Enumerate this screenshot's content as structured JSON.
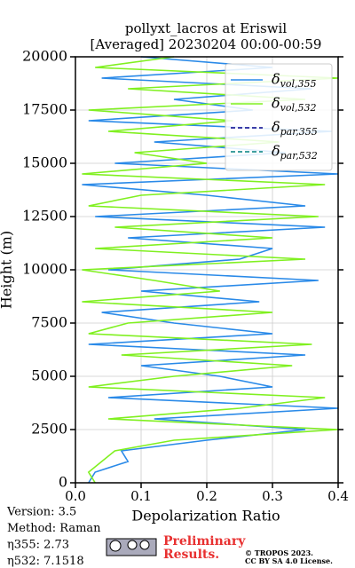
{
  "chart_data": {
    "type": "line",
    "title": "pollyxt_lacros at Eriswil",
    "subtitle": "[Averaged] 20230204 00:00-00:59",
    "x_label": "Depolarization Ratio",
    "y_label": "Height (m)",
    "y": [
      0,
      500,
      1000,
      1500,
      2000,
      2500,
      3000,
      3500,
      4000,
      4500,
      5000,
      5500,
      6000,
      6500,
      7000,
      7500,
      8000,
      8500,
      9000,
      9500,
      10000,
      10500,
      11000,
      11500,
      12000,
      12500,
      13000,
      13500,
      14000,
      14500,
      15000,
      15500,
      16000,
      16500,
      17000,
      17500,
      18000,
      18500,
      19000,
      19500,
      20000
    ],
    "series": [
      {
        "name": "δvol,355",
        "color": "#2a8ae8",
        "dashed": false,
        "values": [
          0.02,
          0.03,
          0.08,
          0.07,
          0.2,
          0.35,
          0.12,
          0.4,
          0.05,
          0.3,
          0.22,
          0.1,
          0.35,
          0.02,
          0.3,
          0.15,
          0.04,
          0.28,
          0.1,
          0.37,
          0.05,
          0.25,
          0.3,
          0.08,
          0.38,
          0.03,
          0.35,
          0.2,
          0.01,
          0.4,
          0.06,
          0.32,
          0.12,
          0.39,
          0.02,
          0.27,
          0.15,
          0.36,
          0.04,
          0.3,
          0.1
        ]
      },
      {
        "name": "δvol,532",
        "color": "#80f020",
        "dashed": false,
        "values": [
          0.03,
          0.02,
          0.04,
          0.06,
          0.15,
          0.4,
          0.05,
          0.25,
          0.38,
          0.02,
          0.15,
          0.33,
          0.07,
          0.36,
          0.02,
          0.08,
          0.3,
          0.01,
          0.22,
          0.12,
          0.01,
          0.35,
          0.03,
          0.3,
          0.06,
          0.37,
          0.02,
          0.1,
          0.38,
          0.01,
          0.2,
          0.09,
          0.31,
          0.05,
          0.24,
          0.02,
          0.35,
          0.08,
          0.4,
          0.03,
          0.15
        ]
      },
      {
        "name": "δpar,355",
        "color": "#00008b",
        "dashed": true,
        "values": [
          null,
          null,
          null,
          null,
          null,
          null,
          null,
          null,
          null,
          null,
          null,
          null,
          null,
          null,
          null,
          null,
          null,
          null,
          null,
          null,
          null,
          null,
          null,
          null,
          null,
          null,
          null,
          null,
          null,
          null,
          null,
          null,
          null,
          null,
          null,
          null,
          null,
          null,
          null,
          null,
          null
        ]
      },
      {
        "name": "δpar,532",
        "color": "#008080",
        "dashed": true,
        "values": [
          null,
          null,
          null,
          null,
          null,
          null,
          null,
          null,
          null,
          null,
          null,
          null,
          null,
          null,
          null,
          null,
          null,
          null,
          null,
          null,
          null,
          null,
          null,
          null,
          null,
          null,
          null,
          null,
          null,
          null,
          null,
          null,
          null,
          null,
          null,
          null,
          null,
          null,
          null,
          null,
          null
        ]
      }
    ],
    "xlim": [
      0,
      0.4
    ],
    "xticks": [
      {
        "value": 0,
        "label": "0.0"
      },
      0.1,
      0.2,
      0.3,
      0.4
    ],
    "ylim": [
      0,
      20000
    ],
    "yticks": [
      0,
      2500,
      5000,
      7500,
      10000,
      12500,
      15000,
      17500,
      20000
    ],
    "grid": true,
    "legend": "upper right",
    "info": [
      "Version: 3.5",
      "Method: Raman",
      "η355:   2.73",
      "η532: 7.1518"
    ],
    "notice": [
      "Preliminary",
      "Results."
    ],
    "license": [
      "© TROPOS 2023.",
      "CC BY SA 4.0 License."
    ]
  }
}
